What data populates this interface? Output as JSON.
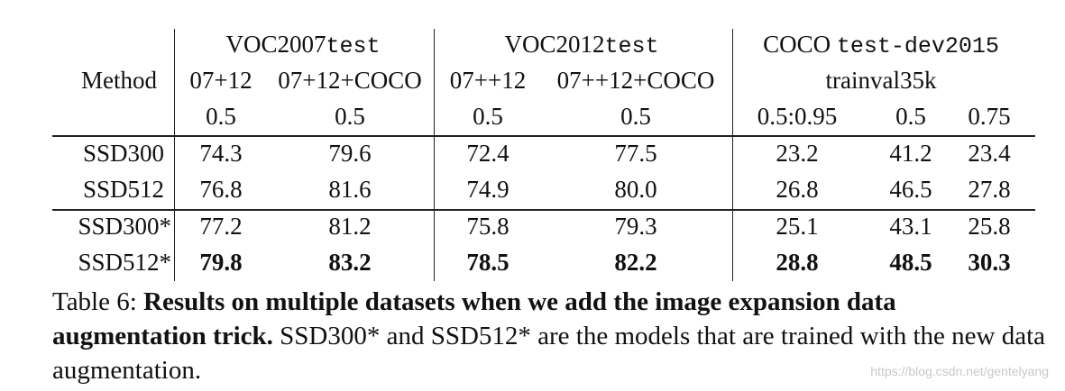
{
  "table": {
    "header": {
      "method_label": "Method",
      "groups": [
        {
          "name": "VOC2007",
          "split": "test"
        },
        {
          "name": "VOC2012",
          "split": "test"
        },
        {
          "name": "COCO",
          "split": "test-dev2015"
        }
      ],
      "training_sets": [
        "07+12",
        "07+12+COCO",
        "07++12",
        "07++12+COCO",
        "trainval35k"
      ],
      "iou_thresholds": [
        "0.5",
        "0.5",
        "0.5",
        "0.5",
        "0.5:0.95",
        "0.5",
        "0.75"
      ]
    },
    "rows": [
      {
        "method": "SSD300",
        "values": [
          "74.3",
          "79.6",
          "72.4",
          "77.5",
          "23.2",
          "41.2",
          "23.4"
        ]
      },
      {
        "method": "SSD512",
        "values": [
          "76.8",
          "81.6",
          "74.9",
          "80.0",
          "26.8",
          "46.5",
          "27.8"
        ]
      },
      {
        "method": "SSD300*",
        "values": [
          "77.2",
          "81.2",
          "75.8",
          "79.3",
          "25.1",
          "43.1",
          "25.8"
        ]
      },
      {
        "method": "SSD512*",
        "values": [
          "79.8",
          "83.2",
          "78.5",
          "82.2",
          "28.8",
          "48.5",
          "30.3"
        ]
      }
    ]
  },
  "caption": {
    "label": "Table 6: ",
    "bold_text": "Results on multiple datasets when we add the image expansion data augmentation trick.",
    "text": " SSD300* and SSD512* are the models that are trained with the new data augmentation."
  },
  "watermark": "https://blog.csdn.net/gentelyang"
}
